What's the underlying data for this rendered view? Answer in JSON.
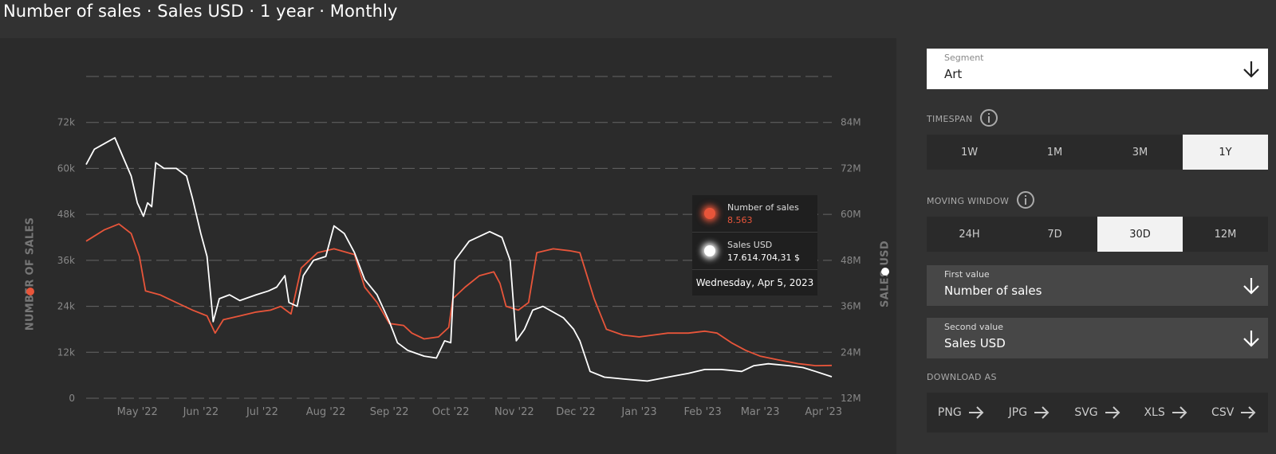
{
  "title": "Number of sales · Sales USD · 1 year · Monthly",
  "colors": {
    "sales_count": "#e8553a",
    "sales_usd": "#ffffff",
    "grid": "#666666",
    "tick": "#888888"
  },
  "chart_data": {
    "type": "line",
    "x_ticks": [
      "May '22",
      "Jun '22",
      "Jul '22",
      "Aug '22",
      "Sep '22",
      "Oct '22",
      "Nov '22",
      "Dec '22",
      "Jan '23",
      "Feb '23",
      "Mar '23",
      "Apr '23"
    ],
    "left_axis": {
      "label": "NUMBER OF SALES",
      "ticks": [
        "0",
        "12k",
        "24k",
        "36k",
        "48k",
        "60k",
        "72k"
      ],
      "ylim": [
        0,
        84000
      ]
    },
    "right_axis": {
      "label": "SALES USD",
      "ticks": [
        "12M",
        "24M",
        "36M",
        "48M",
        "60M",
        "72M",
        "84M"
      ],
      "ylim": [
        12000000,
        96000000
      ]
    },
    "grid": true,
    "series": [
      {
        "name": "Number of sales",
        "axis": "left",
        "color": "#e8553a",
        "points": [
          [
            "2022-04-06",
            41000
          ],
          [
            "2022-04-15",
            44000
          ],
          [
            "2022-04-22",
            45500
          ],
          [
            "2022-04-28",
            43000
          ],
          [
            "2022-05-02",
            37000
          ],
          [
            "2022-05-05",
            28000
          ],
          [
            "2022-05-12",
            27000
          ],
          [
            "2022-05-20",
            25000
          ],
          [
            "2022-05-28",
            23000
          ],
          [
            "2022-06-04",
            21500
          ],
          [
            "2022-06-08",
            17000
          ],
          [
            "2022-06-12",
            20500
          ],
          [
            "2022-06-20",
            21500
          ],
          [
            "2022-06-28",
            22500
          ],
          [
            "2022-07-05",
            23000
          ],
          [
            "2022-07-10",
            24000
          ],
          [
            "2022-07-15",
            22000
          ],
          [
            "2022-07-20",
            34000
          ],
          [
            "2022-07-28",
            38000
          ],
          [
            "2022-08-05",
            39000
          ],
          [
            "2022-08-15",
            37500
          ],
          [
            "2022-08-20",
            29000
          ],
          [
            "2022-08-26",
            25000
          ],
          [
            "2022-09-01",
            19500
          ],
          [
            "2022-09-08",
            19000
          ],
          [
            "2022-09-12",
            17000
          ],
          [
            "2022-09-18",
            15500
          ],
          [
            "2022-09-25",
            16000
          ],
          [
            "2022-09-30",
            18500
          ],
          [
            "2022-10-02",
            26000
          ],
          [
            "2022-10-08",
            29000
          ],
          [
            "2022-10-15",
            32000
          ],
          [
            "2022-10-22",
            33000
          ],
          [
            "2022-10-25",
            30000
          ],
          [
            "2022-10-28",
            24000
          ],
          [
            "2022-11-03",
            23000
          ],
          [
            "2022-11-08",
            25000
          ],
          [
            "2022-11-12",
            38000
          ],
          [
            "2022-11-20",
            39000
          ],
          [
            "2022-11-28",
            38500
          ],
          [
            "2022-12-03",
            38000
          ],
          [
            "2022-12-10",
            26000
          ],
          [
            "2022-12-16",
            18000
          ],
          [
            "2022-12-24",
            16500
          ],
          [
            "2023-01-01",
            16000
          ],
          [
            "2023-01-08",
            16500
          ],
          [
            "2023-01-15",
            17000
          ],
          [
            "2023-01-25",
            17000
          ],
          [
            "2023-02-02",
            17500
          ],
          [
            "2023-02-08",
            17000
          ],
          [
            "2023-02-15",
            14500
          ],
          [
            "2023-02-22",
            12500
          ],
          [
            "2023-03-01",
            11000
          ],
          [
            "2023-03-10",
            10000
          ],
          [
            "2023-03-20",
            9000
          ],
          [
            "2023-03-28",
            8500
          ],
          [
            "2023-04-05",
            8563
          ]
        ]
      },
      {
        "name": "Sales USD",
        "axis": "right",
        "color": "#ffffff",
        "points": [
          [
            "2022-04-06",
            73000000
          ],
          [
            "2022-04-10",
            77000000
          ],
          [
            "2022-04-15",
            78500000
          ],
          [
            "2022-04-20",
            80000000
          ],
          [
            "2022-04-24",
            75000000
          ],
          [
            "2022-04-28",
            70000000
          ],
          [
            "2022-05-01",
            63000000
          ],
          [
            "2022-05-04",
            59500000
          ],
          [
            "2022-05-06",
            63000000
          ],
          [
            "2022-05-08",
            62000000
          ],
          [
            "2022-05-10",
            73500000
          ],
          [
            "2022-05-14",
            72000000
          ],
          [
            "2022-05-20",
            72000000
          ],
          [
            "2022-05-25",
            70000000
          ],
          [
            "2022-05-28",
            64000000
          ],
          [
            "2022-06-01",
            55000000
          ],
          [
            "2022-06-04",
            49000000
          ],
          [
            "2022-06-07",
            32000000
          ],
          [
            "2022-06-10",
            38000000
          ],
          [
            "2022-06-15",
            39000000
          ],
          [
            "2022-06-20",
            37500000
          ],
          [
            "2022-06-28",
            39000000
          ],
          [
            "2022-07-04",
            40000000
          ],
          [
            "2022-07-08",
            41000000
          ],
          [
            "2022-07-12",
            44000000
          ],
          [
            "2022-07-14",
            37000000
          ],
          [
            "2022-07-18",
            36000000
          ],
          [
            "2022-07-21",
            44000000
          ],
          [
            "2022-07-26",
            48000000
          ],
          [
            "2022-08-01",
            49000000
          ],
          [
            "2022-08-05",
            57000000
          ],
          [
            "2022-08-10",
            55000000
          ],
          [
            "2022-08-15",
            50000000
          ],
          [
            "2022-08-20",
            43000000
          ],
          [
            "2022-08-26",
            39000000
          ],
          [
            "2022-09-01",
            32000000
          ],
          [
            "2022-09-05",
            26500000
          ],
          [
            "2022-09-10",
            24500000
          ],
          [
            "2022-09-18",
            23000000
          ],
          [
            "2022-09-24",
            22500000
          ],
          [
            "2022-09-28",
            27000000
          ],
          [
            "2022-10-01",
            26500000
          ],
          [
            "2022-10-03",
            48000000
          ],
          [
            "2022-10-10",
            53000000
          ],
          [
            "2022-10-20",
            55500000
          ],
          [
            "2022-10-26",
            54000000
          ],
          [
            "2022-10-30",
            48000000
          ],
          [
            "2022-11-02",
            27000000
          ],
          [
            "2022-11-06",
            30000000
          ],
          [
            "2022-11-10",
            35000000
          ],
          [
            "2022-11-15",
            36000000
          ],
          [
            "2022-11-25",
            33000000
          ],
          [
            "2022-11-30",
            30000000
          ],
          [
            "2022-12-03",
            27000000
          ],
          [
            "2022-12-08",
            19000000
          ],
          [
            "2022-12-15",
            17500000
          ],
          [
            "2022-12-25",
            17000000
          ],
          [
            "2023-01-05",
            16500000
          ],
          [
            "2023-01-15",
            17500000
          ],
          [
            "2023-01-25",
            18500000
          ],
          [
            "2023-02-02",
            19500000
          ],
          [
            "2023-02-10",
            19500000
          ],
          [
            "2023-02-20",
            19000000
          ],
          [
            "2023-02-26",
            20500000
          ],
          [
            "2023-03-05",
            21000000
          ],
          [
            "2023-03-15",
            20500000
          ],
          [
            "2023-03-22",
            20000000
          ],
          [
            "2023-03-28",
            19000000
          ],
          [
            "2023-04-05",
            17614704.31
          ]
        ]
      }
    ]
  },
  "tooltip": {
    "series1_label": "Number of sales",
    "series1_value": "8.563",
    "series2_label": "Sales USD",
    "series2_value": "17.614.704,31 $",
    "date": "Wednesday, Apr 5, 2023"
  },
  "panel": {
    "segment": {
      "label": "Segment",
      "value": "Art"
    },
    "timespan": {
      "label": "TIMESPAN",
      "options": [
        "1W",
        "1M",
        "3M",
        "1Y"
      ],
      "active": "1Y"
    },
    "moving_window": {
      "label": "MOVING WINDOW",
      "options": [
        "24H",
        "7D",
        "30D",
        "12M"
      ],
      "active": "30D"
    },
    "first_value": {
      "label": "First value",
      "value": "Number of sales"
    },
    "second_value": {
      "label": "Second value",
      "value": "Sales USD"
    },
    "download": {
      "label": "DOWNLOAD AS",
      "formats": [
        "PNG",
        "JPG",
        "SVG",
        "XLS",
        "CSV"
      ]
    }
  }
}
